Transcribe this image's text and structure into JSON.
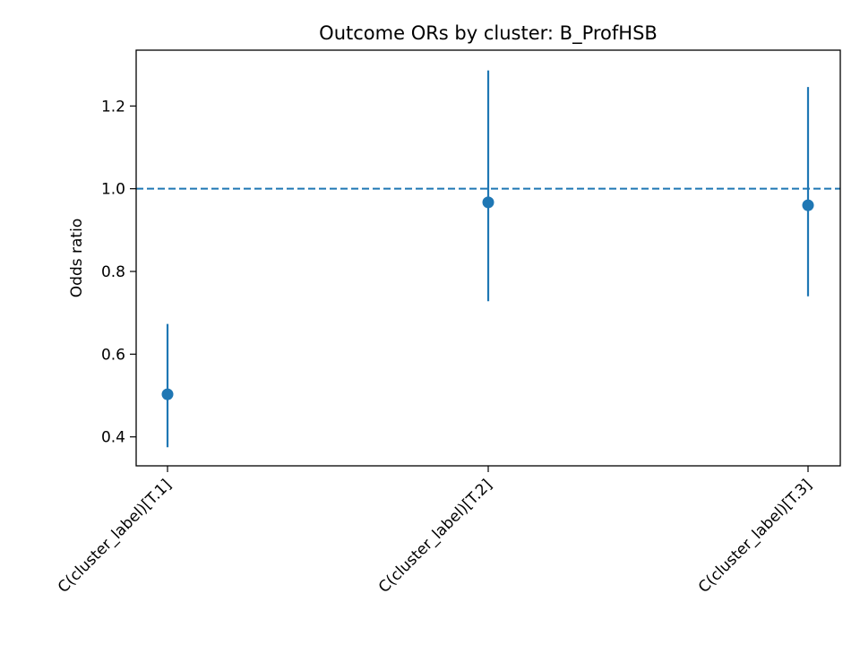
{
  "chart_data": {
    "type": "scatter",
    "title": "Outcome ORs by cluster: B_ProfHSB",
    "xlabel": "",
    "ylabel": "Odds ratio",
    "categories": [
      "C(cluster_label)[T.1]",
      "C(cluster_label)[T.2]",
      "C(cluster_label)[T.3]"
    ],
    "series": [
      {
        "values": [
          0.503,
          0.967,
          0.96
        ],
        "ci_lower": [
          0.375,
          0.728,
          0.74
        ],
        "ci_upper": [
          0.673,
          1.286,
          1.246
        ]
      }
    ],
    "reference_line": {
      "y": 1.0,
      "style": "dashed"
    },
    "ylim": [
      0.33,
      1.335
    ],
    "yticks": [
      "0.4",
      "0.6",
      "0.8",
      "1.0",
      "1.2"
    ],
    "grid": false,
    "legend": "none",
    "color": "#1f77b4"
  }
}
